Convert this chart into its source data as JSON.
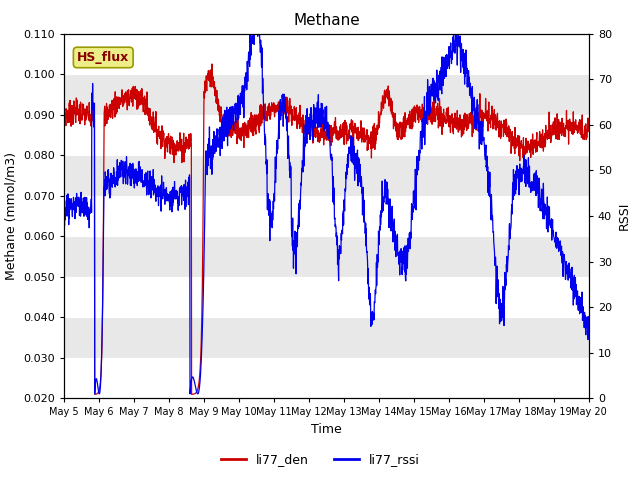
{
  "title": "Methane",
  "xlabel": "Time",
  "ylabel_left": "Methane (mmol/m3)",
  "ylabel_right": "RSSI",
  "left_ylim": [
    0.02,
    0.11
  ],
  "right_ylim": [
    0,
    80
  ],
  "left_yticks": [
    0.02,
    0.03,
    0.04,
    0.05,
    0.06,
    0.07,
    0.08,
    0.09,
    0.1,
    0.11
  ],
  "right_yticks": [
    0,
    10,
    20,
    30,
    40,
    50,
    60,
    70,
    80
  ],
  "fig_bg_color": "#ffffff",
  "plot_bg_color": "#e8e8e8",
  "band_colors": [
    "#ffffff",
    "#e0e0e0"
  ],
  "grid_color": "#ffffff",
  "line_color_red": "#cc0000",
  "line_color_blue": "#0000ee",
  "hs_flux_box_facecolor": "#eeee88",
  "hs_flux_box_edgecolor": "#999900",
  "hs_flux_text_color": "#880000",
  "legend_red_label": "li77_den",
  "legend_blue_label": "li77_rssi",
  "annotation_text": "HS_flux",
  "x_tick_labels": [
    "May 5",
    "May 6",
    "May 7",
    "May 8",
    "May 9",
    "May 10",
    "May 11",
    "May 12",
    "May 13",
    "May 14",
    "May 15",
    "May 16",
    "May 17",
    "May 18",
    "May 19",
    "May 20"
  ],
  "title_fontsize": 11,
  "axis_fontsize": 9,
  "tick_fontsize": 8,
  "legend_fontsize": 9,
  "linewidth": 0.9
}
